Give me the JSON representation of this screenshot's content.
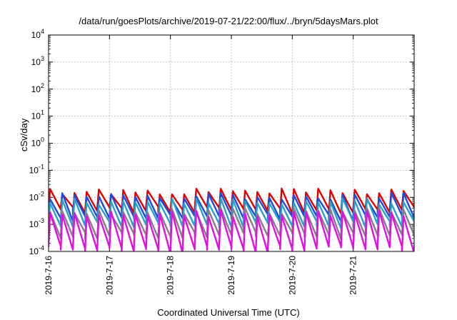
{
  "chart_data": {
    "type": "line",
    "title": "/data/run/goesPlots/archive/2019-07-21/22:00/flux/../bryn/5daysMars.plot",
    "xlabel": "Coordinated Universal Time (UTC)",
    "ylabel": "cSv/day",
    "y_scale": "log",
    "ylim": [
      0.0001,
      10000
    ],
    "y_ticks": [
      {
        "value": 0.0001,
        "base": "10",
        "exp": "-4"
      },
      {
        "value": 0.001,
        "base": "10",
        "exp": "-3"
      },
      {
        "value": 0.01,
        "base": "10",
        "exp": "-2"
      },
      {
        "value": 0.1,
        "base": "10",
        "exp": "-1"
      },
      {
        "value": 1,
        "base": "10",
        "exp": "0"
      },
      {
        "value": 10,
        "base": "10",
        "exp": "1"
      },
      {
        "value": 100,
        "base": "10",
        "exp": "2"
      },
      {
        "value": 1000,
        "base": "10",
        "exp": "3"
      },
      {
        "value": 10000,
        "base": "10",
        "exp": "4"
      }
    ],
    "xlim": [
      "2019-07-16 00:00",
      "2019-07-22 00:00"
    ],
    "x_ticks": [
      "2019-7-16",
      "2019-7-17",
      "2019-7-18",
      "2019-7-19",
      "2019-7-20",
      "2019-7-21"
    ],
    "grid": true,
    "sawtooth_periods_per_day": 5,
    "series": [
      {
        "color": "#e00000",
        "peak": 0.016,
        "trough": 0.0035
      },
      {
        "color": "#1e4bd8",
        "peak": 0.011,
        "trough": 0.0018
      },
      {
        "color": "#2aa0c8",
        "peak": 0.007,
        "trough": 0.001
      },
      {
        "color": "#8a7a8a",
        "peak": 0.003,
        "trough": 0.0004
      },
      {
        "color": "#e010e0",
        "peak": 0.0025,
        "trough": 0.00012
      }
    ]
  }
}
